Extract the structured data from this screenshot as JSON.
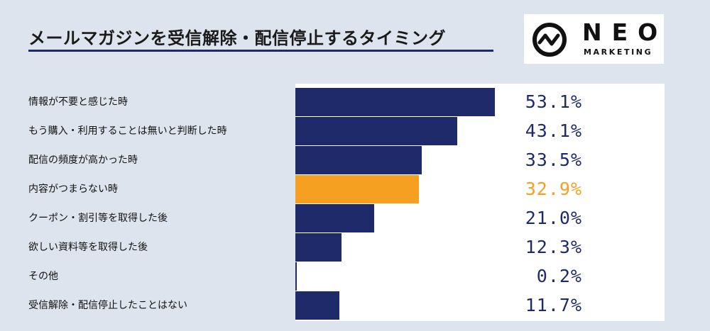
{
  "title": "メールマガジンを受信解除・配信停止するタイミング",
  "logo": {
    "icon": "neo-wave-circle-icon",
    "word": "NEO",
    "sub": "MARKETING"
  },
  "colors": {
    "bar": "#1f2a6b",
    "highlight": "#f5a020"
  },
  "chart_data": {
    "type": "bar",
    "orientation": "horizontal",
    "title": "メールマガジンを受信解除・配信停止するタイミング",
    "categories": [
      "情報が不要と感じた時",
      "もう購入・利用することは無いと判断した時",
      "配信の頻度が高かった時",
      "内容がつまらない時",
      "クーポン・割引等を取得した後",
      "欲しい資料等を取得した後",
      "その他",
      "受信解除・配信停止したことはない"
    ],
    "values": [
      53.1,
      43.1,
      33.5,
      32.9,
      21.0,
      12.3,
      0.2,
      11.7
    ],
    "value_labels": [
      "53.1%",
      "43.1%",
      "33.5%",
      "32.9%",
      "21.0%",
      "12.3%",
      "0.2%",
      "11.7%"
    ],
    "highlight_index": 3,
    "xlim": [
      0,
      100
    ],
    "grid": false,
    "legend": "none"
  }
}
